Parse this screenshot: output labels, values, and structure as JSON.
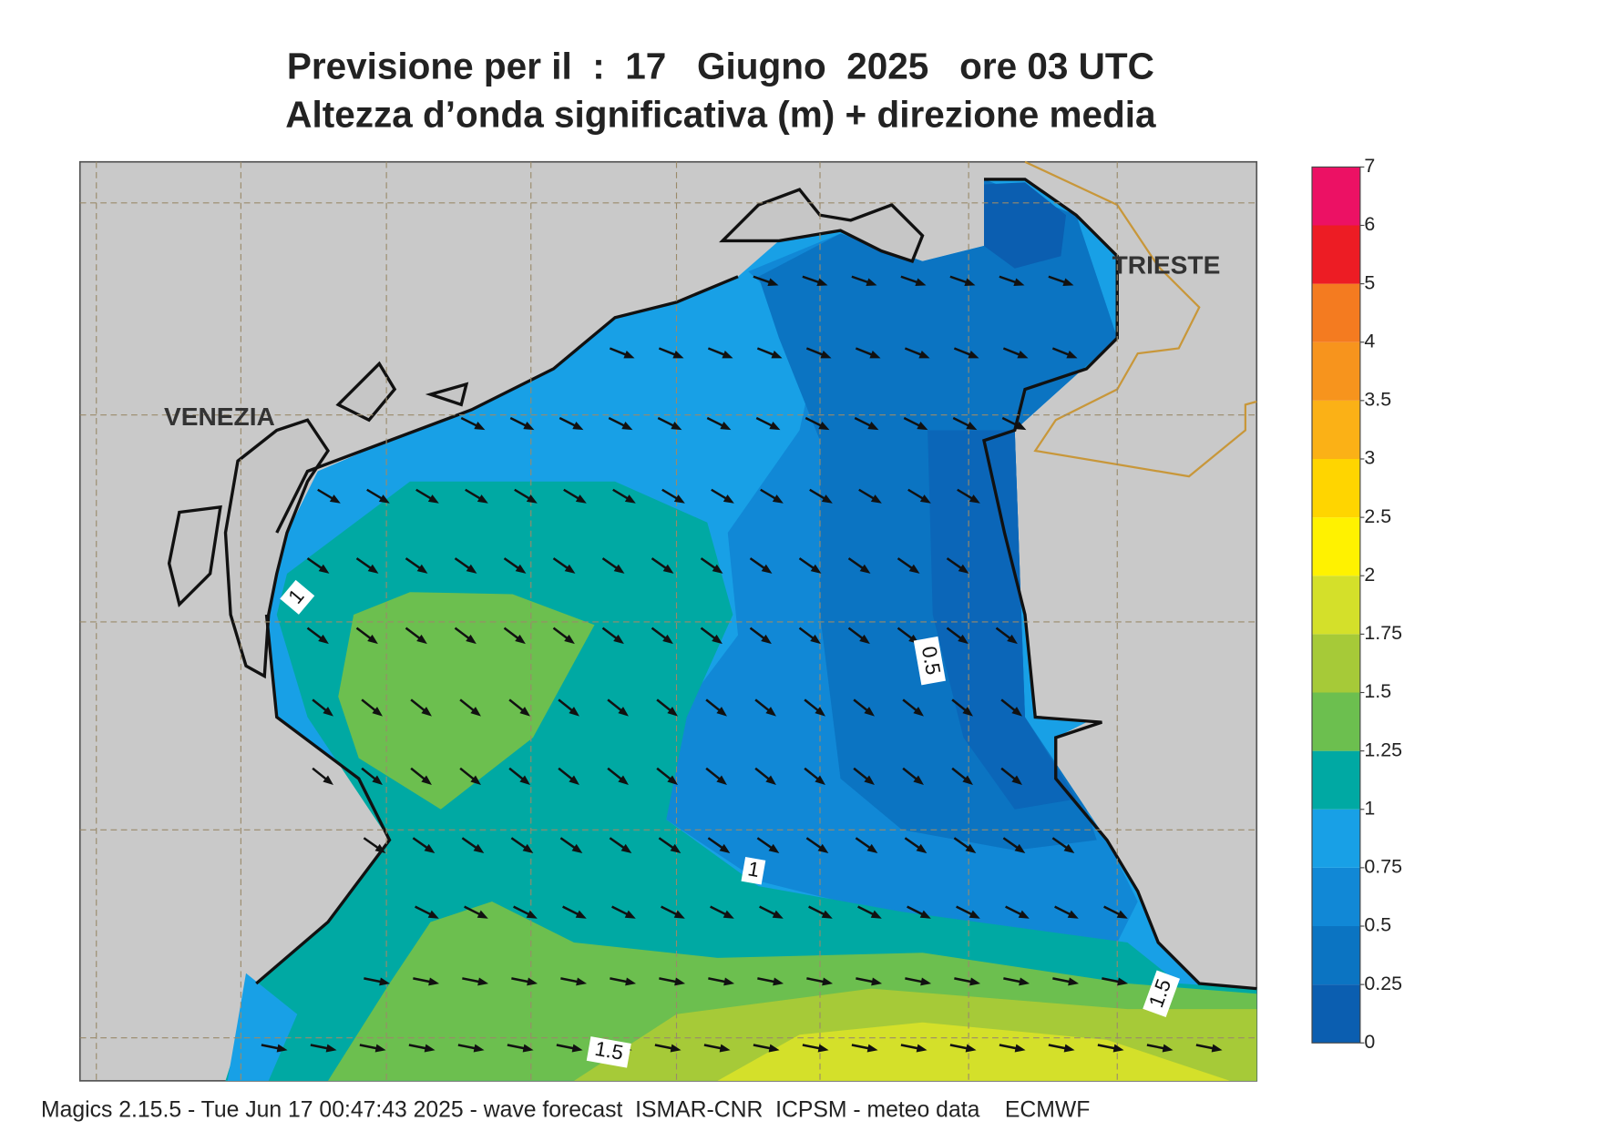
{
  "header": {
    "title": "Previsione per il  :  17   Giugno  2025   ore 03 UTC",
    "subtitle": "Altezza d’onda significativa (m) + direzione media"
  },
  "places": [
    "VENEZIA",
    "TRIESTE"
  ],
  "contour_labels": [
    "1",
    "0.5",
    "1",
    "1.5",
    "1.5"
  ],
  "colorbar": {
    "levels": [
      0,
      0.25,
      0.5,
      0.75,
      1,
      1.25,
      1.5,
      1.75,
      2,
      2.5,
      3,
      3.5,
      4,
      5,
      6,
      7
    ],
    "colors": [
      "#0b5eb0",
      "#0b74c2",
      "#1188d6",
      "#18a0e6",
      "#00a9a3",
      "#6cbf4f",
      "#a6ca38",
      "#d4e02a",
      "#fff200",
      "#ffd500",
      "#fbb116",
      "#f7941d",
      "#f47b20",
      "#ed1c24",
      "#ec1164"
    ]
  },
  "footer": "Magics 2.15.5 - Tue Jun 17 00:47:43 2025 - wave forecast  ISMAR-CNR  ICPSM - meteo data    ECMWF"
}
